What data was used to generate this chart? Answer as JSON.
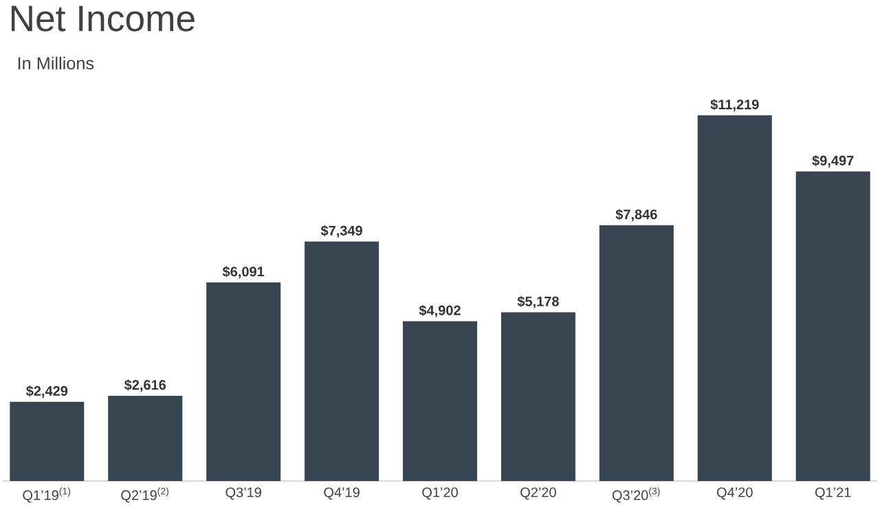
{
  "chart_data": {
    "type": "bar",
    "title": "Net Income",
    "subtitle": "In Millions",
    "categories": [
      "Q1’19$^{(1)}$",
      "Q2’19$^{(2)}$",
      "Q3’19",
      "Q4’19",
      "Q1’20",
      "Q2’20",
      "Q3’20$^{(3)}$",
      "Q4’20",
      "Q1’21"
    ],
    "values": [
      2429,
      2616,
      6091,
      7349,
      4902,
      5178,
      7846,
      11219,
      9497
    ],
    "value_labels": [
      "$2,429",
      "$2,616",
      "$6,091",
      "$7,349",
      "$4,902",
      "$5,178",
      "$7,846",
      "$11,219",
      "$9,497"
    ],
    "color": "#36454f"
  }
}
